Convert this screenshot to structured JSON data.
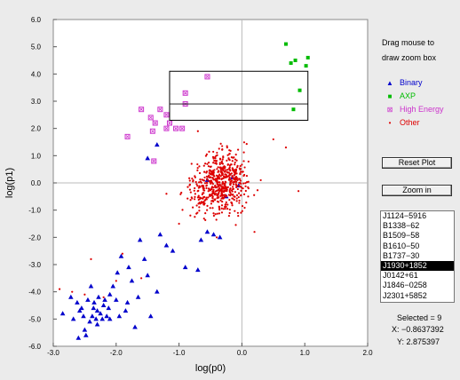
{
  "chart_data": {
    "type": "scatter",
    "xlabel": "log(p0)",
    "ylabel": "log(p1)",
    "xlim": [
      -3.0,
      2.0
    ],
    "ylim": [
      -6.0,
      6.0
    ],
    "x_ticks": [
      "-3.0",
      "-2.0",
      "-1.0",
      "0.0",
      "1.0",
      "2.0"
    ],
    "y_ticks": [
      "6.0",
      "5.0",
      "4.0",
      "3.0",
      "2.0",
      "1.0",
      "0.0",
      "-1.0",
      "-2.0",
      "-3.0",
      "-4.0",
      "-5.0",
      "-6.0"
    ],
    "grid": false,
    "zero_lines": true,
    "legend_position": "right panel",
    "zoom_box": {
      "x0": -1.15,
      "x1": 1.05,
      "y0": 2.3,
      "y1": 4.1,
      "inner_y": 2.9
    },
    "series": [
      {
        "name": "Binary",
        "color": "#0000cc",
        "marker": "triangle",
        "points": [
          [
            -2.85,
            -4.8
          ],
          [
            -2.72,
            -4.2
          ],
          [
            -2.68,
            -5.0
          ],
          [
            -2.62,
            -4.4
          ],
          [
            -2.55,
            -4.6
          ],
          [
            -2.5,
            -5.4
          ],
          [
            -2.45,
            -4.3
          ],
          [
            -2.42,
            -5.1
          ],
          [
            -2.4,
            -3.8
          ],
          [
            -2.38,
            -4.9
          ],
          [
            -2.35,
            -4.4
          ],
          [
            -2.32,
            -5.0
          ],
          [
            -2.3,
            -4.7
          ],
          [
            -2.28,
            -4.2
          ],
          [
            -2.25,
            -4.8
          ],
          [
            -2.22,
            -5.0
          ],
          [
            -2.2,
            -4.5
          ],
          [
            -2.18,
            -4.3
          ],
          [
            -2.15,
            -4.9
          ],
          [
            -2.12,
            -4.6
          ],
          [
            -2.1,
            -4.1
          ],
          [
            -2.05,
            -3.8
          ],
          [
            -2.0,
            -4.3
          ],
          [
            -1.98,
            -3.3
          ],
          [
            -1.92,
            -2.7
          ],
          [
            -1.85,
            -4.7
          ],
          [
            -1.82,
            -4.4
          ],
          [
            -1.8,
            -3.1
          ],
          [
            -1.75,
            -3.6
          ],
          [
            -1.7,
            -5.3
          ],
          [
            -1.65,
            -4.2
          ],
          [
            -1.62,
            -2.1
          ],
          [
            -1.55,
            -2.8
          ],
          [
            -1.5,
            -3.4
          ],
          [
            -1.45,
            -4.9
          ],
          [
            -1.35,
            -4.0
          ],
          [
            -1.3,
            -1.9
          ],
          [
            -1.2,
            -2.3
          ],
          [
            -1.1,
            -2.5
          ],
          [
            -0.9,
            -3.1
          ],
          [
            -0.7,
            -3.2
          ],
          [
            -0.65,
            -2.1
          ],
          [
            -0.55,
            -1.8
          ],
          [
            -0.45,
            -1.9
          ],
          [
            -0.35,
            -2.0
          ],
          [
            -0.25,
            -0.5
          ],
          [
            -0.15,
            0.2
          ],
          [
            -0.05,
            -0.1
          ],
          [
            -0.55,
            0.1
          ],
          [
            -1.35,
            1.4
          ],
          [
            -1.5,
            0.9
          ],
          [
            -2.6,
            -5.7
          ],
          [
            -2.48,
            -5.6
          ],
          [
            -2.3,
            -5.2
          ],
          [
            -2.1,
            -5.0
          ],
          [
            -1.95,
            -4.9
          ],
          [
            -2.58,
            -4.7
          ],
          [
            -2.52,
            -4.9
          ],
          [
            -2.36,
            -4.6
          ]
        ]
      },
      {
        "name": "AXP",
        "color": "#00bb00",
        "marker": "square",
        "points": [
          [
            0.7,
            5.1
          ],
          [
            0.78,
            4.4
          ],
          [
            0.85,
            4.5
          ],
          [
            0.92,
            3.4
          ],
          [
            0.82,
            2.7
          ],
          [
            1.02,
            4.3
          ],
          [
            1.05,
            4.6
          ]
        ]
      },
      {
        "name": "High Energy",
        "color": "#cc33cc",
        "marker": "boxed-x",
        "points": [
          [
            -1.6,
            2.7
          ],
          [
            -1.45,
            2.4
          ],
          [
            -1.42,
            1.9
          ],
          [
            -1.38,
            2.2
          ],
          [
            -1.3,
            2.7
          ],
          [
            -1.2,
            2.5
          ],
          [
            -1.15,
            2.2
          ],
          [
            -1.05,
            2.0
          ],
          [
            -0.95,
            2.0
          ],
          [
            -0.9,
            2.9
          ],
          [
            -0.9,
            3.3
          ],
          [
            -0.55,
            3.9
          ],
          [
            -1.82,
            1.7
          ],
          [
            -1.4,
            0.8
          ],
          [
            -1.2,
            2.0
          ]
        ]
      },
      {
        "name": "Other",
        "color": "#dd0000",
        "marker": "dot",
        "scatter_center": [
          -0.35,
          0.0
        ],
        "count": 600,
        "points_sample": [
          [
            -0.5,
            0.2
          ],
          [
            -0.3,
            -0.3
          ],
          [
            -0.1,
            0.4
          ],
          [
            -0.6,
            -0.8
          ],
          [
            -0.2,
            1.2
          ],
          [
            0.1,
            -0.5
          ],
          [
            -0.8,
            0.7
          ],
          [
            0.3,
            0.1
          ],
          [
            -1.0,
            -1.5
          ],
          [
            -0.4,
            -2.0
          ],
          [
            0.5,
            1.6
          ],
          [
            -2.5,
            -4.1
          ],
          [
            -2.0,
            -3.6
          ],
          [
            -2.7,
            -4.0
          ],
          [
            -1.9,
            -2.6
          ],
          [
            0.9,
            -0.3
          ],
          [
            0.7,
            1.3
          ],
          [
            -1.2,
            -0.4
          ],
          [
            0.2,
            -1.8
          ],
          [
            -0.7,
            1.9
          ],
          [
            -2.4,
            -2.8
          ],
          [
            -2.9,
            -3.9
          ],
          [
            -2.2,
            -4.2
          ],
          [
            -1.6,
            -3.5
          ]
        ]
      }
    ]
  },
  "panel": {
    "hint_line1": "Drag mouse to",
    "hint_line2": "draw zoom box",
    "legend": [
      {
        "label": "Binary",
        "color": "#0000cc",
        "glyph": "▲"
      },
      {
        "label": "AXP",
        "color": "#00bb00",
        "glyph": "■"
      },
      {
        "label": "High Energy",
        "color": "#cc33cc",
        "glyph": "⊠"
      },
      {
        "label": "Other",
        "color": "#dd0000",
        "glyph": "•"
      }
    ],
    "reset_label": "Reset Plot",
    "zoom_label": "Zoom in",
    "list_items": [
      "J1124−5916",
      "B1338−62",
      "B1509−58",
      "B1610−50",
      "B1737−30",
      "J1930+1852",
      "J0142+61",
      "J1846−0258",
      "J2301+5852"
    ],
    "selected_index": 5,
    "selected_text": "Selected = 9",
    "x_readout": "X: −0.8637392",
    "y_readout": "Y: 2.875397"
  }
}
